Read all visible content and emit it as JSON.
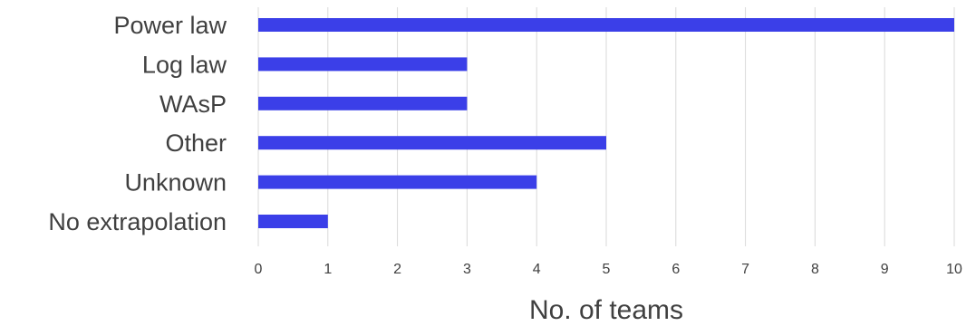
{
  "chart_data": {
    "type": "bar",
    "orientation": "horizontal",
    "categories": [
      "Power law",
      "Log law",
      "WAsP",
      "Other",
      "Unknown",
      "No extrapolation"
    ],
    "values": [
      10,
      3,
      3,
      5,
      4,
      1
    ],
    "xlabel": "No. of teams",
    "ylabel": "",
    "xlim": [
      0,
      10
    ],
    "xticks": [
      "0",
      "1",
      "2",
      "3",
      "4",
      "5",
      "6",
      "7",
      "8",
      "9",
      "10"
    ],
    "grid": true,
    "legend": "none",
    "bar_color": "#3b3fe8"
  }
}
